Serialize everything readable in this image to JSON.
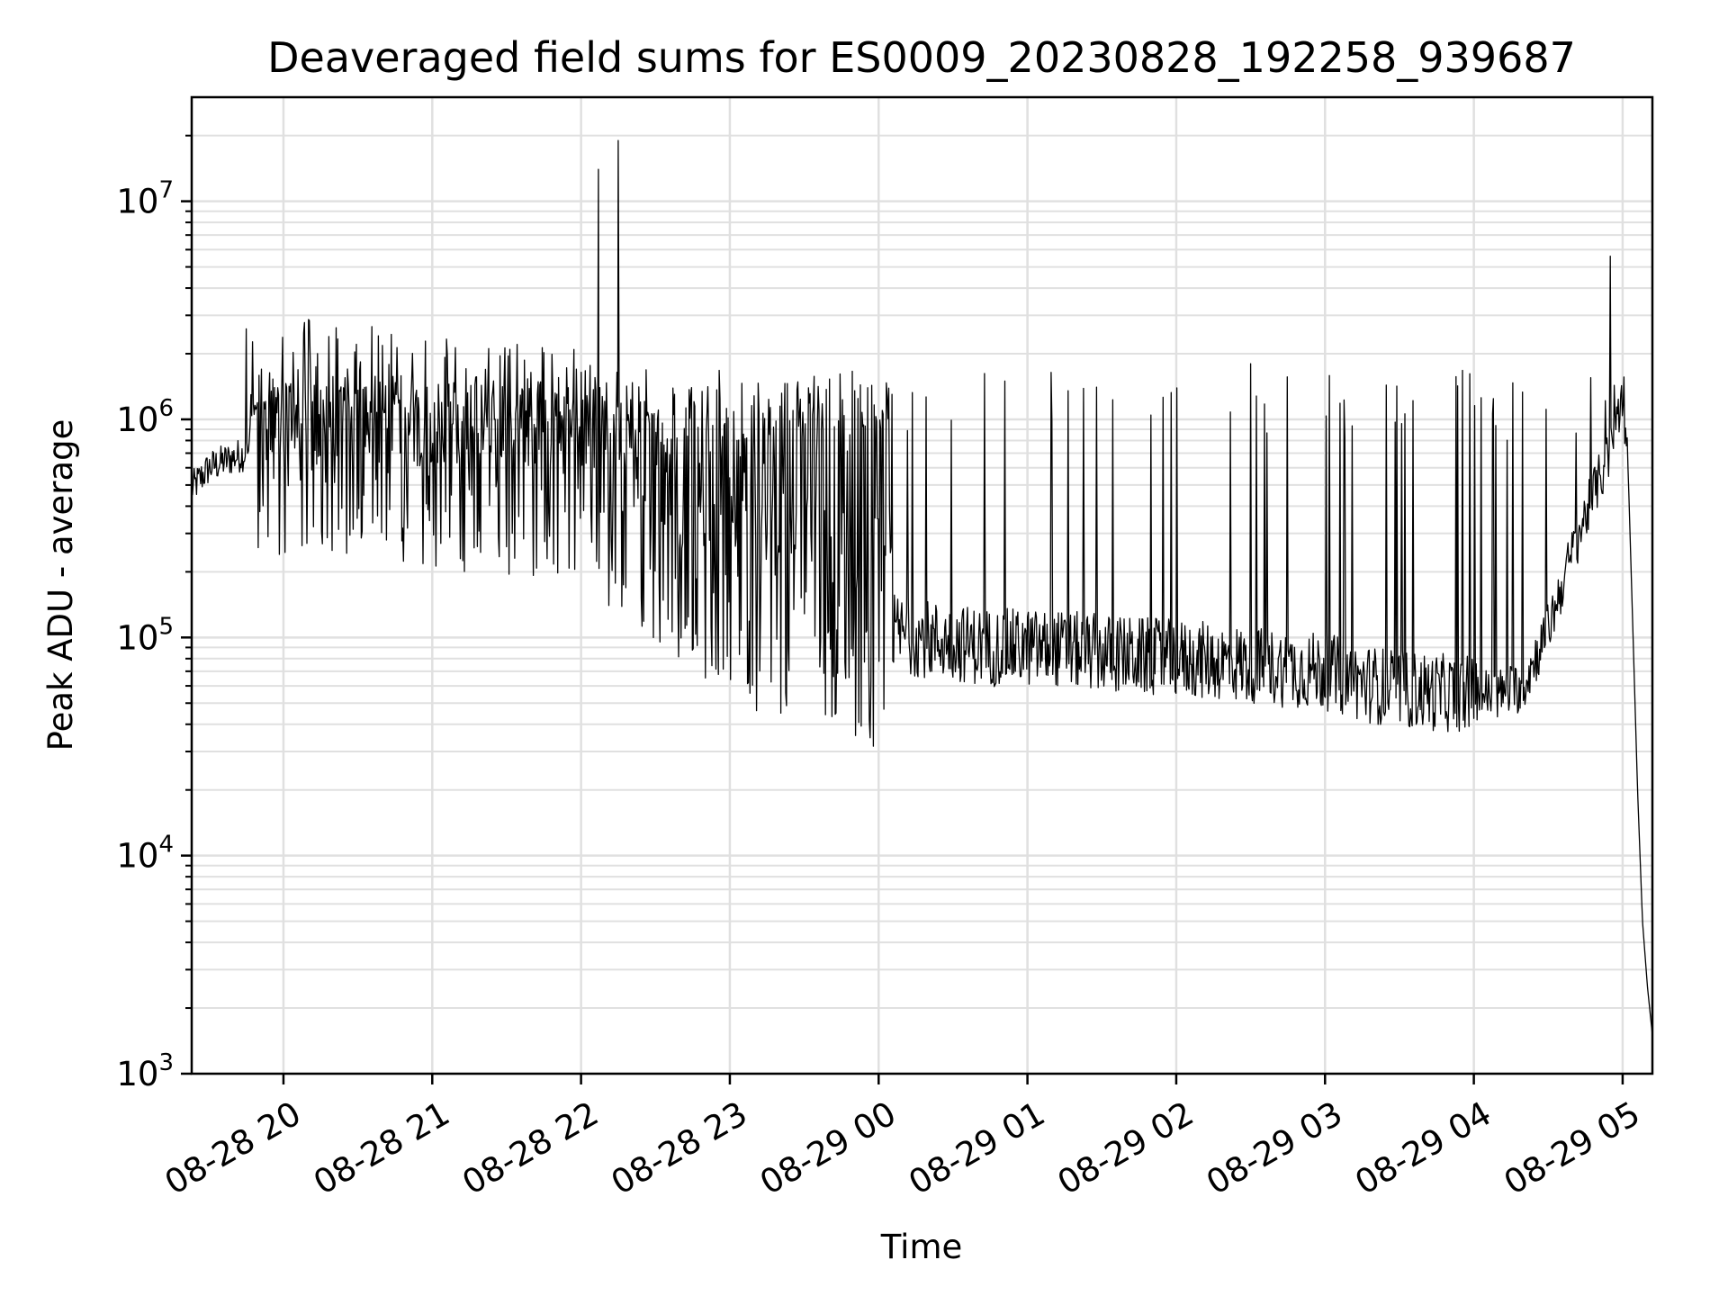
{
  "chart_data": {
    "type": "line",
    "title": "Deaveraged field sums for ES0009_20230828_192258_939687",
    "xlabel": "Time",
    "ylabel": "Peak ADU - average",
    "yscale": "log",
    "ylim": [
      1000,
      30000000
    ],
    "xlim": [
      "2023-08-28 19:23",
      "2023-08-29 05:12"
    ],
    "grid": true,
    "line_color": "#000000",
    "grid_color": "#e0e0e0",
    "x_ticks": [
      {
        "value": "2023-08-28 20:00",
        "label": "08-28 20"
      },
      {
        "value": "2023-08-28 21:00",
        "label": "08-28 21"
      },
      {
        "value": "2023-08-28 22:00",
        "label": "08-28 22"
      },
      {
        "value": "2023-08-28 23:00",
        "label": "08-28 23"
      },
      {
        "value": "2023-08-29 00:00",
        "label": "08-29 00"
      },
      {
        "value": "2023-08-29 01:00",
        "label": "08-29 01"
      },
      {
        "value": "2023-08-29 02:00",
        "label": "08-29 02"
      },
      {
        "value": "2023-08-29 03:00",
        "label": "08-29 03"
      },
      {
        "value": "2023-08-29 04:00",
        "label": "08-29 04"
      },
      {
        "value": "2023-08-29 05:00",
        "label": "08-29 05"
      }
    ],
    "y_ticks": [
      {
        "value": 1000,
        "base": "10",
        "exp": "3"
      },
      {
        "value": 10000,
        "base": "10",
        "exp": "4"
      },
      {
        "value": 100000,
        "base": "10",
        "exp": "5"
      },
      {
        "value": 1000000,
        "base": "10",
        "exp": "6"
      },
      {
        "value": 10000000,
        "base": "10",
        "exp": "7"
      }
    ],
    "series": [
      {
        "x": [
          "2023-08-28 19:23",
          "2023-08-28 19:30",
          "2023-08-28 19:37",
          "2023-08-28 19:45",
          "2023-08-28 19:52",
          "2023-08-28 20:00",
          "2023-08-28 20:10",
          "2023-08-28 20:20",
          "2023-08-28 20:30",
          "2023-08-28 20:40",
          "2023-08-28 20:50",
          "2023-08-28 21:00",
          "2023-08-28 21:10",
          "2023-08-28 21:20",
          "2023-08-28 21:30",
          "2023-08-28 21:40",
          "2023-08-28 21:50",
          "2023-08-28 22:00",
          "2023-08-28 22:07",
          "2023-08-28 22:15",
          "2023-08-28 22:25",
          "2023-08-28 22:35",
          "2023-08-28 22:45",
          "2023-08-28 23:00",
          "2023-08-28 23:15",
          "2023-08-28 23:30",
          "2023-08-28 23:45",
          "2023-08-29 00:00",
          "2023-08-29 00:15",
          "2023-08-29 00:30",
          "2023-08-29 00:45",
          "2023-08-29 01:00",
          "2023-08-29 01:15",
          "2023-08-29 01:30",
          "2023-08-29 01:45",
          "2023-08-29 02:00",
          "2023-08-29 02:15",
          "2023-08-29 02:30",
          "2023-08-29 02:45",
          "2023-08-29 03:00",
          "2023-08-29 03:15",
          "2023-08-29 03:30",
          "2023-08-29 03:45",
          "2023-08-29 04:00",
          "2023-08-29 04:10",
          "2023-08-29 04:20",
          "2023-08-29 04:30",
          "2023-08-29 04:40",
          "2023-08-29 04:48",
          "2023-08-29 04:55",
          "2023-08-29 04:58",
          "2023-08-29 05:00",
          "2023-08-29 05:02",
          "2023-08-29 05:04",
          "2023-08-29 05:06",
          "2023-08-29 05:08",
          "2023-08-29 05:10",
          "2023-08-29 05:12"
        ],
        "y": [
          480000,
          600000,
          650000,
          700000,
          750000,
          800000,
          850000,
          820000,
          780000,
          760000,
          740000,
          720000,
          700000,
          690000,
          680000,
          660000,
          640000,
          600000,
          520000,
          450000,
          380000,
          300000,
          250000,
          180000,
          150000,
          130000,
          120000,
          110000,
          100000,
          95000,
          90000,
          90000,
          88000,
          85000,
          82000,
          80000,
          78000,
          75000,
          72000,
          70000,
          62000,
          58000,
          56000,
          55000,
          55000,
          60000,
          110000,
          250000,
          450000,
          700000,
          1100000,
          1150000,
          700000,
          120000,
          20000,
          5000,
          2500,
          1500
        ],
        "spikes": [
          {
            "x": "2023-08-28 19:45",
            "y": 2600000
          },
          {
            "x": "2023-08-28 22:07",
            "y": 14000000
          },
          {
            "x": "2023-08-28 22:15",
            "y": 19000000
          },
          {
            "x": "2023-08-29 02:30",
            "y": 1800000
          },
          {
            "x": "2023-08-29 04:55",
            "y": 5600000
          }
        ]
      }
    ]
  }
}
